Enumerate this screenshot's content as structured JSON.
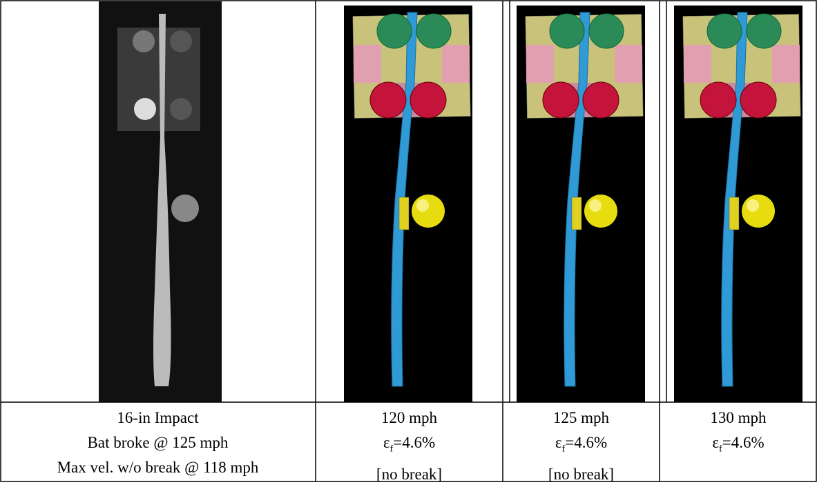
{
  "table": {
    "captions": [
      [
        "16-in Impact",
        "Bat broke @ 125 mph",
        "Max vel. w/o break @ 118 mph"
      ],
      [
        "120 mph",
        {
          "symbol": "ε",
          "sub": "f",
          "rest": "=4.6%"
        },
        "[no break]"
      ],
      [
        "125 mph",
        {
          "symbol": "ε",
          "sub": "f",
          "rest": "=4.6%"
        },
        "[no break]"
      ],
      [
        "130 mph",
        {
          "symbol": "ε",
          "sub": "f",
          "rest": "=4.6%"
        }
      ]
    ]
  }
}
